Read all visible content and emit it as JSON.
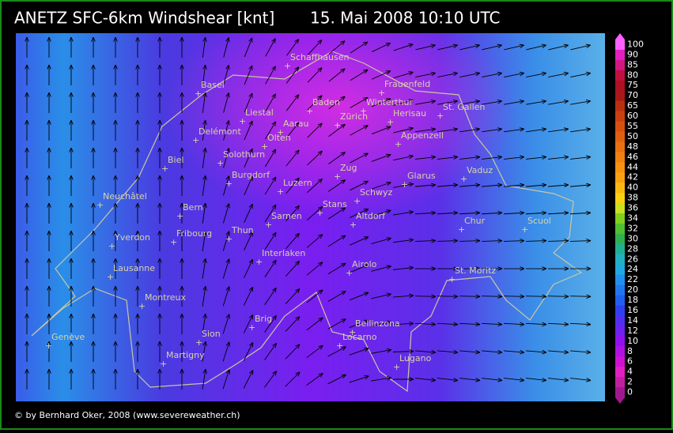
{
  "header": {
    "title": "ANETZ SFC-6km Windshear [knt]",
    "timestamp": "15. Mai 2008 10:10 UTC"
  },
  "places": [
    "Schaffhausen",
    "Basel",
    "Frauenfeld",
    "Liestal",
    "Baden",
    "Winterthur",
    "St. Gallen",
    "Delémont",
    "Aarau",
    "Zürich",
    "Herisau",
    "Olten",
    "Appenzell",
    "Solothurn",
    "Biel",
    "Vaduz",
    "Zug",
    "Burgdorf",
    "Glarus",
    "Luzern",
    "Schwyz",
    "Neuchâtel",
    "Bern",
    "Stans",
    "Sarnen",
    "Altdorf",
    "Chur",
    "Scuol",
    "Fribourg",
    "Thun",
    "Yverdon",
    "Interlaken",
    "Airolo",
    "Lausanne",
    "St. Moritz",
    "Montreux",
    "Brig",
    "Bellinzona",
    "Genève",
    "Sion",
    "Locarno",
    "Martigny",
    "Lugano"
  ],
  "colorbar": {
    "labels": [
      100,
      90,
      85,
      80,
      75,
      70,
      65,
      60,
      55,
      50,
      48,
      46,
      44,
      42,
      40,
      38,
      36,
      34,
      32,
      30,
      28,
      26,
      24,
      22,
      20,
      18,
      16,
      14,
      12,
      10,
      8,
      6,
      4,
      2,
      0
    ]
  },
  "footer": {
    "credit": "© by Bernhard Oker, 2008 (www.severeweather.ch)"
  }
}
